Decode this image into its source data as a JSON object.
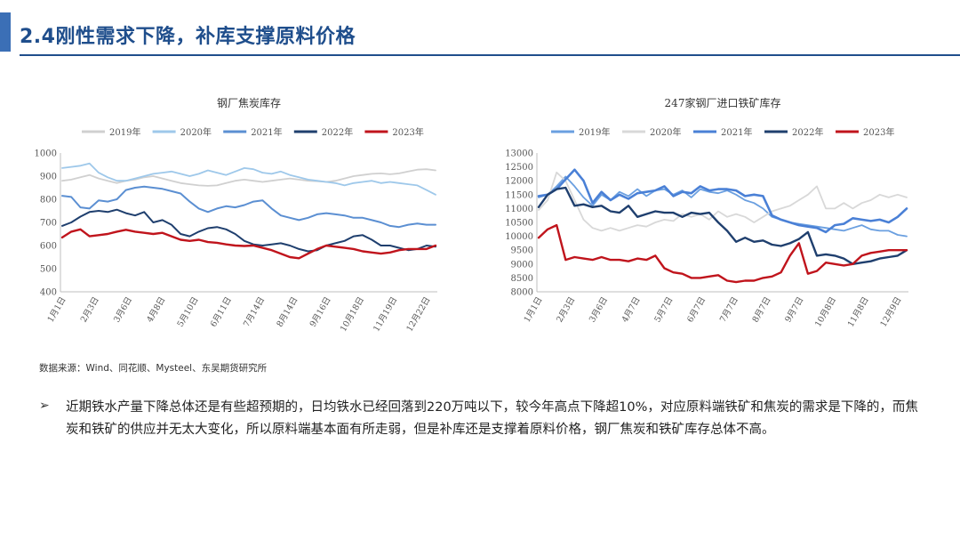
{
  "header": {
    "title": "2.4刚性需求下降，补库支撑原料价格",
    "accent_color": "#3b6fb6",
    "title_color": "#1f4e8c"
  },
  "source_note": "数据来源：Wind、同花顺、Mysteel、东吴期货研究所",
  "bullet": {
    "marker": "➢",
    "text": "近期铁水产量下降总体还是有些超预期的，日均铁水已经回落到220万吨以下，较今年高点下降超10%，对应原料端铁矿和焦炭的需求是下降的，而焦炭和铁矿的供应并无太大变化，所以原料端基本面有所走弱，但是补库还是支撑着原料价格，钢厂焦炭和铁矿库存总体不高。"
  },
  "chart_data": [
    {
      "type": "line",
      "title": "钢厂焦炭库存",
      "xlabel": "",
      "ylabel": "",
      "ylim": [
        400,
        1000
      ],
      "yticks": [
        400,
        500,
        600,
        700,
        800,
        900,
        1000
      ],
      "x_tick_labels": [
        "1月1日",
        "2月3日",
        "3月6日",
        "4月8日",
        "5月10日",
        "6月11日",
        "7月14日",
        "8月14日",
        "9月16日",
        "10月18日",
        "11月19日",
        "12月22日"
      ],
      "legend_position": "top",
      "series": [
        {
          "name": "2019年",
          "color": "#d0d0d0",
          "width": 1.8,
          "values": [
            880,
            885,
            895,
            905,
            890,
            880,
            870,
            880,
            885,
            895,
            900,
            890,
            880,
            870,
            865,
            860,
            858,
            860,
            870,
            880,
            885,
            880,
            875,
            880,
            885,
            890,
            885,
            880,
            878,
            875,
            880,
            890,
            900,
            905,
            910,
            912,
            908,
            912,
            920,
            928,
            930,
            925
          ]
        },
        {
          "name": "2020年",
          "color": "#9ec8ea",
          "width": 1.8,
          "values": [
            935,
            940,
            945,
            955,
            915,
            895,
            880,
            880,
            890,
            900,
            910,
            915,
            920,
            910,
            900,
            910,
            925,
            915,
            905,
            920,
            935,
            930,
            915,
            910,
            920,
            905,
            895,
            885,
            880,
            875,
            870,
            860,
            870,
            875,
            880,
            870,
            875,
            870,
            865,
            860,
            840,
            820
          ]
        },
        {
          "name": "2021年",
          "color": "#5b8fd2",
          "width": 2.0,
          "values": [
            815,
            810,
            765,
            760,
            795,
            790,
            800,
            840,
            850,
            855,
            850,
            845,
            835,
            825,
            790,
            760,
            745,
            760,
            770,
            765,
            775,
            790,
            795,
            760,
            730,
            720,
            710,
            720,
            735,
            740,
            735,
            730,
            720,
            720,
            710,
            700,
            685,
            680,
            690,
            695,
            690,
            690
          ]
        },
        {
          "name": "2022年",
          "color": "#1f3f6e",
          "width": 2.0,
          "values": [
            685,
            700,
            725,
            745,
            750,
            745,
            755,
            740,
            730,
            745,
            700,
            710,
            690,
            650,
            640,
            660,
            675,
            680,
            670,
            650,
            620,
            605,
            600,
            605,
            610,
            600,
            585,
            575,
            580,
            600,
            610,
            620,
            640,
            645,
            625,
            600,
            600,
            590,
            580,
            585,
            600,
            595
          ]
        },
        {
          "name": "2023年",
          "color": "#c0141c",
          "width": 2.4,
          "values": [
            635,
            660,
            670,
            640,
            645,
            650,
            660,
            668,
            660,
            655,
            650,
            655,
            640,
            625,
            620,
            625,
            615,
            612,
            605,
            600,
            598,
            600,
            590,
            580,
            565,
            550,
            545,
            565,
            585,
            600,
            595,
            590,
            585,
            575,
            570,
            565,
            570,
            580,
            585,
            585,
            585,
            600
          ]
        }
      ]
    },
    {
      "type": "line",
      "title": "247家钢厂进口铁矿库存",
      "xlabel": "",
      "ylabel": "",
      "ylim": [
        8000,
        13000
      ],
      "yticks": [
        8000,
        8500,
        9000,
        9500,
        10000,
        10500,
        11000,
        11500,
        12000,
        12500,
        13000
      ],
      "x_tick_labels": [
        "1月1日",
        "2月3日",
        "3月6日",
        "4月7日",
        "5月7日",
        "6月7日",
        "7月7日",
        "8月7日",
        "9月7日",
        "10月8日",
        "11月8日",
        "12月9日"
      ],
      "legend_position": "top",
      "series": [
        {
          "name": "2019年",
          "color": "#6a9fe0",
          "width": 1.8,
          "values": [
            11400,
            11500,
            11800,
            12150,
            11800,
            11400,
            11100,
            11500,
            11300,
            11600,
            11450,
            11700,
            11450,
            11650,
            11700,
            11500,
            11650,
            11400,
            11700,
            11600,
            11550,
            11650,
            11500,
            11300,
            11200,
            11000,
            10700,
            10600,
            10500,
            10450,
            10400,
            10350,
            10300,
            10250,
            10200,
            10300,
            10400,
            10250,
            10200,
            10200,
            10050,
            10000
          ]
        },
        {
          "name": "2020年",
          "color": "#d8d8d8",
          "width": 1.8,
          "values": [
            10950,
            11300,
            12300,
            12000,
            11300,
            10600,
            10300,
            10200,
            10300,
            10200,
            10300,
            10400,
            10350,
            10500,
            10600,
            10550,
            10800,
            10700,
            10800,
            10600,
            10900,
            10700,
            10800,
            10700,
            10500,
            10700,
            10900,
            11000,
            11100,
            11300,
            11500,
            11800,
            11000,
            11000,
            11200,
            11000,
            11200,
            11300,
            11500,
            11400,
            11500,
            11400
          ]
        },
        {
          "name": "2021年",
          "color": "#4a80d6",
          "width": 2.6,
          "values": [
            11450,
            11500,
            11700,
            12050,
            12400,
            12000,
            11200,
            11600,
            11300,
            11500,
            11350,
            11550,
            11600,
            11650,
            11800,
            11450,
            11600,
            11550,
            11800,
            11650,
            11700,
            11700,
            11650,
            11450,
            11500,
            11450,
            10750,
            10600,
            10500,
            10400,
            10350,
            10300,
            10150,
            10400,
            10450,
            10650,
            10600,
            10550,
            10600,
            10500,
            10700,
            11000
          ]
        },
        {
          "name": "2022年",
          "color": "#1f3f6e",
          "width": 2.4,
          "values": [
            11050,
            11500,
            11700,
            11750,
            11100,
            11150,
            11050,
            11100,
            10900,
            10850,
            11100,
            10700,
            10800,
            10900,
            10850,
            10850,
            10700,
            10850,
            10800,
            10850,
            10500,
            10200,
            9800,
            9950,
            9800,
            9850,
            9700,
            9650,
            9750,
            9900,
            10150,
            9300,
            9350,
            9300,
            9200,
            9000,
            9050,
            9100,
            9200,
            9250,
            9300,
            9500
          ]
        },
        {
          "name": "2023年",
          "color": "#c0141c",
          "width": 2.4,
          "values": [
            9950,
            10250,
            10400,
            9150,
            9250,
            9200,
            9150,
            9250,
            9150,
            9150,
            9100,
            9200,
            9150,
            9300,
            8850,
            8700,
            8650,
            8500,
            8500,
            8550,
            8600,
            8400,
            8350,
            8400,
            8400,
            8500,
            8550,
            8700,
            9300,
            9750,
            8650,
            8750,
            9050,
            9000,
            8950,
            9000,
            9300,
            9400,
            9450,
            9500,
            9500,
            9500
          ]
        }
      ]
    }
  ]
}
